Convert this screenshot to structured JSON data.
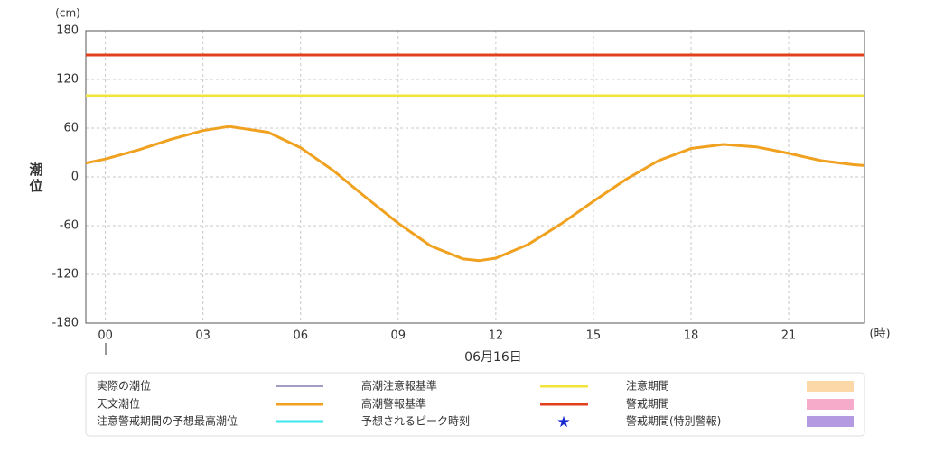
{
  "chart_data": {
    "type": "line",
    "y_unit": "(cm)",
    "y_label": "潮位",
    "x_unit": "(時)",
    "date_label": "06月16日",
    "xlim": [
      -0.6,
      23.33
    ],
    "ylim": [
      -180,
      180
    ],
    "xticks": [
      {
        "value": 0,
        "label": "00"
      },
      {
        "value": 3,
        "label": "03"
      },
      {
        "value": 6,
        "label": "06"
      },
      {
        "value": 9,
        "label": "09"
      },
      12,
      15,
      18,
      21
    ],
    "yticks": [
      -180,
      -120,
      -60,
      0,
      60,
      120,
      180
    ],
    "grid": true,
    "x": [
      -0.6,
      0,
      1,
      2,
      3,
      3.8,
      5,
      6,
      7,
      8,
      9,
      10,
      11,
      11.5,
      12,
      13,
      14,
      15,
      16,
      17,
      18,
      19,
      20,
      21,
      22,
      23,
      23.33
    ],
    "series": [
      {
        "name": "天文潮位",
        "color": "#f0a11f",
        "values": [
          17,
          22,
          33,
          46,
          57,
          62,
          55,
          36,
          8,
          -25,
          -57,
          -85,
          -101,
          -103,
          -100,
          -83,
          -58,
          -30,
          -3,
          20,
          35,
          40,
          37,
          29,
          20,
          15,
          14
        ]
      }
    ],
    "reference_lines": [
      {
        "name": "高潮注意報基準",
        "color": "#f2e43a",
        "value": 100
      },
      {
        "name": "高潮警報基準",
        "color": "#e0401c",
        "value": 150
      }
    ],
    "legend_extra": [
      {
        "name": "実際の潮位",
        "color": "#4a3a8a",
        "kind": "thin-line"
      },
      {
        "name": "注意警戒期間の予想最高潮位",
        "color": "#3ee6ee",
        "kind": "line"
      },
      {
        "name": "予想されるピーク時刻",
        "color": "#1a2ad0",
        "kind": "star"
      },
      {
        "name": "注意期間",
        "color": "#fcd8a8",
        "kind": "box"
      },
      {
        "name": "警戒期間",
        "color": "#f5abc9",
        "kind": "box"
      },
      {
        "name": "警戒期間(特別警報)",
        "color": "#b49ae0",
        "kind": "box"
      }
    ]
  }
}
